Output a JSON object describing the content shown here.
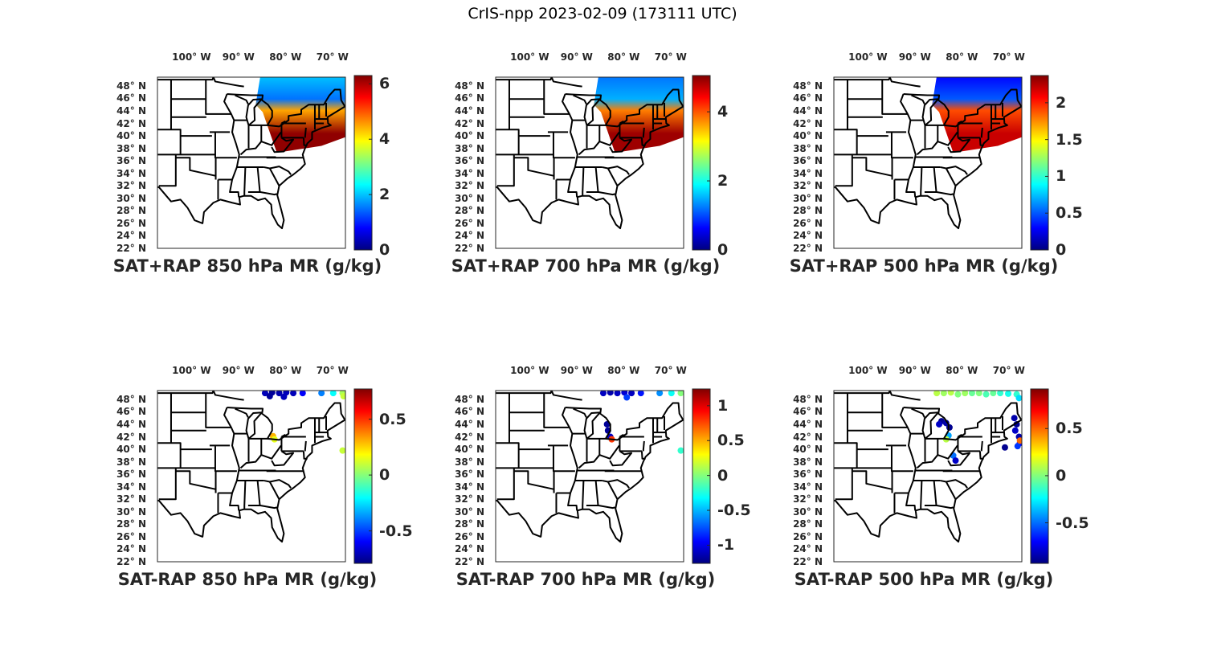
{
  "figure_title": "CrIS-npp 2023-02-09 (173111 UTC)",
  "colors": {
    "outline": "#000000",
    "text": "#262626",
    "colormap": "jet"
  },
  "chart_data": [
    {
      "type": "map",
      "title": "SAT+RAP 850 hPa MR (g/kg)",
      "lon_ticks": [
        "100° W",
        "90° W",
        "80° W",
        "70° W"
      ],
      "lat_ticks": [
        "48° N",
        "46° N",
        "44° N",
        "42° N",
        "40° N",
        "38° N",
        "36° N",
        "34° N",
        "32° N",
        "30° N",
        "28° N",
        "26° N",
        "24° N",
        "22° N"
      ],
      "colorbar": {
        "min": 0,
        "max": 6.3,
        "ticks": [
          0,
          2,
          4,
          6
        ],
        "tick_labels": [
          "0",
          "2",
          "4",
          "6"
        ]
      },
      "swath": {
        "field": "total",
        "band_values": [
          2,
          1.5,
          4.5,
          6.2
        ]
      }
    },
    {
      "type": "map",
      "title": "SAT+RAP 700 hPa MR (g/kg)",
      "lon_ticks": [
        "100° W",
        "90° W",
        "80° W",
        "70° W"
      ],
      "lat_ticks": [
        "48° N",
        "46° N",
        "44° N",
        "42° N",
        "40° N",
        "38° N",
        "36° N",
        "34° N",
        "32° N",
        "30° N",
        "28° N",
        "26° N",
        "24° N",
        "22° N"
      ],
      "colorbar": {
        "min": 0,
        "max": 5.05,
        "ticks": [
          0,
          2,
          4
        ],
        "tick_labels": [
          "0",
          "2",
          "4"
        ]
      },
      "swath": {
        "field": "total",
        "band_values": [
          1.2,
          1.5,
          3.8,
          4.9
        ]
      }
    },
    {
      "type": "map",
      "title": "SAT+RAP 500 hPa MR (g/kg)",
      "lon_ticks": [
        "100° W",
        "90° W",
        "80° W",
        "70° W"
      ],
      "lat_ticks": [
        "48° N",
        "46° N",
        "44° N",
        "42° N",
        "40° N",
        "38° N",
        "36° N",
        "34° N",
        "32° N",
        "30° N",
        "28° N",
        "26° N",
        "24° N",
        "22° N"
      ],
      "colorbar": {
        "min": 0,
        "max": 2.37,
        "ticks": [
          0,
          0.5,
          1,
          1.5,
          2
        ],
        "tick_labels": [
          "0",
          "0.5",
          "1",
          "1.5",
          "2"
        ]
      },
      "swath": {
        "field": "total",
        "band_values": [
          0.3,
          0.5,
          1.9,
          2.2
        ]
      }
    },
    {
      "type": "map",
      "title": "SAT-RAP 850 hPa MR (g/kg)",
      "lon_ticks": [
        "100° W",
        "90° W",
        "80° W",
        "70° W"
      ],
      "lat_ticks": [
        "48° N",
        "46° N",
        "44° N",
        "42° N",
        "40° N",
        "38° N",
        "36° N",
        "34° N",
        "32° N",
        "30° N",
        "28° N",
        "26° N",
        "24° N",
        "22° N"
      ],
      "colorbar": {
        "min": -0.79,
        "max": 0.77,
        "ticks": [
          -0.5,
          0,
          0.5
        ],
        "tick_labels": [
          "-0.5",
          "0",
          "0.5"
        ]
      },
      "points": [
        [
          -84,
          49
        ],
        [
          -82.5,
          49.1
        ],
        [
          -81,
          49
        ],
        [
          -79.5,
          49.1
        ],
        [
          -78,
          49
        ],
        [
          -83,
          48.5
        ],
        [
          -80,
          48.4
        ],
        [
          -76,
          49
        ],
        [
          -72,
          49
        ],
        [
          -69.5,
          49
        ],
        [
          -67.5,
          49
        ],
        [
          -67.3,
          48.5
        ],
        [
          -82.3,
          42.1
        ],
        [
          -82,
          41.6
        ],
        [
          -67.5,
          39.8
        ]
      ],
      "point_values": [
        -0.7,
        -0.75,
        -0.72,
        -0.7,
        -0.7,
        -0.75,
        -0.7,
        -0.6,
        -0.4,
        -0.2,
        0.05,
        0.1,
        0.3,
        0.15,
        0.1
      ]
    },
    {
      "type": "map",
      "title": "SAT-RAP 700 hPa MR (g/kg)",
      "lon_ticks": [
        "100° W",
        "90° W",
        "80° W",
        "70° W"
      ],
      "lat_ticks": [
        "48° N",
        "46° N",
        "44° N",
        "42° N",
        "40° N",
        "38° N",
        "36° N",
        "34° N",
        "32° N",
        "30° N",
        "28° N",
        "26° N",
        "24° N",
        "22° N"
      ],
      "colorbar": {
        "min": -1.26,
        "max": 1.24,
        "ticks": [
          -1,
          -0.5,
          0,
          0.5,
          1
        ],
        "tick_labels": [
          "-1",
          "-0.5",
          "0",
          "0.5",
          "1"
        ]
      },
      "points": [
        [
          -84,
          49
        ],
        [
          -82.5,
          49.1
        ],
        [
          -81,
          49
        ],
        [
          -79.5,
          49.1
        ],
        [
          -78,
          49
        ],
        [
          -79,
          48.3
        ],
        [
          -76,
          49
        ],
        [
          -72,
          49
        ],
        [
          -69.5,
          49
        ],
        [
          -67.5,
          49
        ],
        [
          -83.2,
          44
        ],
        [
          -83,
          43
        ],
        [
          -82.5,
          42
        ],
        [
          -82.2,
          41.6
        ],
        [
          -67.5,
          39.8
        ]
      ],
      "point_values": [
        -1.1,
        -1.15,
        -1.1,
        -1.05,
        -1.1,
        -0.8,
        -0.9,
        -0.6,
        -0.3,
        0.0,
        -1.2,
        -1.2,
        -1.1,
        0.8,
        -0.2
      ]
    },
    {
      "type": "map",
      "title": "SAT-RAP 500 hPa MR (g/kg)",
      "lon_ticks": [
        "100° W",
        "90° W",
        "80° W",
        "70° W"
      ],
      "lat_ticks": [
        "48° N",
        "46° N",
        "44° N",
        "42° N",
        "40° N",
        "38° N",
        "36° N",
        "34° N",
        "32° N",
        "30° N",
        "28° N",
        "26° N",
        "24° N",
        "22° N"
      ],
      "colorbar": {
        "min": -0.93,
        "max": 0.92,
        "ticks": [
          -0.5,
          0,
          0.5
        ],
        "tick_labels": [
          "-0.5",
          "0",
          "0.5"
        ]
      },
      "points": [
        [
          -85,
          49
        ],
        [
          -83.5,
          49
        ],
        [
          -82,
          49.1
        ],
        [
          -80.5,
          48.8
        ],
        [
          -79,
          49
        ],
        [
          -77.5,
          49
        ],
        [
          -76,
          49
        ],
        [
          -74.5,
          48.8
        ],
        [
          -73,
          49
        ],
        [
          -71.5,
          49
        ],
        [
          -69.8,
          48.9
        ],
        [
          -68,
          48.8
        ],
        [
          -67.5,
          48.2
        ],
        [
          -84,
          44.5
        ],
        [
          -83,
          44.2
        ],
        [
          -82.3,
          43.5
        ],
        [
          -84.5,
          44
        ],
        [
          -82.5,
          42.2
        ],
        [
          -83,
          41.6
        ],
        [
          -81.5,
          39
        ],
        [
          -81,
          38.2
        ],
        [
          -68.5,
          45
        ],
        [
          -68,
          44
        ],
        [
          -68.3,
          43
        ],
        [
          -67.5,
          42
        ],
        [
          -67.3,
          41
        ],
        [
          -67.8,
          40.5
        ],
        [
          -70.5,
          40.3
        ],
        [
          -67.3,
          41.4
        ]
      ],
      "point_values": [
        0.1,
        0.05,
        0.1,
        0.0,
        0.05,
        -0.05,
        0.0,
        -0.1,
        -0.05,
        -0.15,
        -0.2,
        -0.15,
        -0.3,
        -0.9,
        -0.85,
        -0.9,
        -0.8,
        -0.4,
        0.1,
        -0.5,
        -0.8,
        -0.85,
        -0.9,
        -0.8,
        -0.85,
        -0.7,
        -0.6,
        -0.9,
        0.5
      ]
    }
  ]
}
